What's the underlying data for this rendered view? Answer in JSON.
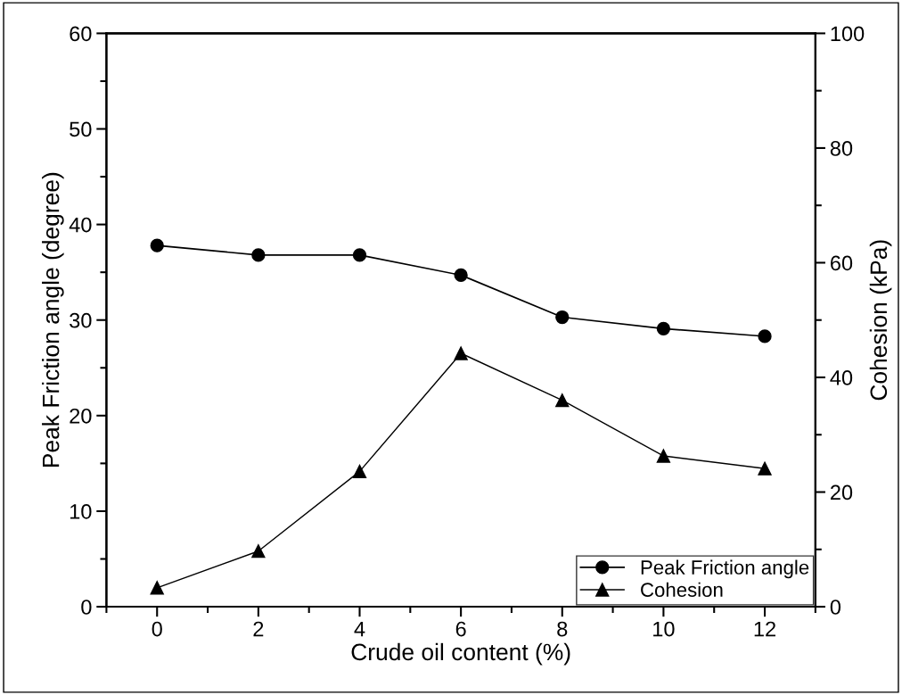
{
  "chart_data": {
    "type": "line",
    "xlabel": "Crude oil content (%)",
    "ylabel": "Peak Friction angle (degree)",
    "y2label": "Cohesion (kPa)",
    "x": [
      0,
      2,
      4,
      6,
      8,
      10,
      12
    ],
    "series": [
      {
        "name": "Peak Friction angle",
        "color": "#000000",
        "values": [
          37.8,
          36.8,
          36.8,
          34.7,
          30.3,
          29.1,
          28.3
        ],
        "marker": "circle"
      },
      {
        "name": "Cohesion",
        "color": "#000000",
        "values": [
          3.3,
          9.7,
          23.6,
          44.2,
          36.0,
          26.3,
          24.1
        ],
        "marker": "triangle",
        "axis": "y2"
      }
    ],
    "xlim": [
      -1,
      13
    ],
    "xticks": [
      {
        "value": -1,
        "label": null
      },
      0,
      {
        "value": 1,
        "label": null
      },
      2,
      {
        "value": 3,
        "label": null
      },
      4,
      {
        "value": 5,
        "label": null
      },
      6,
      {
        "value": 7,
        "label": null
      },
      8,
      {
        "value": 9,
        "label": null
      },
      10,
      {
        "value": 11,
        "label": null
      },
      12,
      {
        "value": 13,
        "label": null
      }
    ],
    "ylim": [
      0,
      60
    ],
    "yticks": [
      0,
      {
        "value": 5,
        "label": null
      },
      10,
      {
        "value": 15,
        "label": null
      },
      20,
      {
        "value": 25,
        "label": null
      },
      30,
      {
        "value": 35,
        "label": null
      },
      40,
      {
        "value": 45,
        "label": null
      },
      50,
      {
        "value": 55,
        "label": null
      },
      60
    ],
    "y2lim": [
      0,
      100
    ],
    "y2ticks": [
      0,
      {
        "value": 10,
        "label": null
      },
      20,
      {
        "value": 30,
        "label": null
      },
      40,
      {
        "value": 50,
        "label": null
      },
      60,
      {
        "value": 70,
        "label": null
      },
      80,
      {
        "value": 90,
        "label": null
      },
      100
    ],
    "grid": false,
    "legend": "bottom right",
    "line_style": "solid"
  }
}
